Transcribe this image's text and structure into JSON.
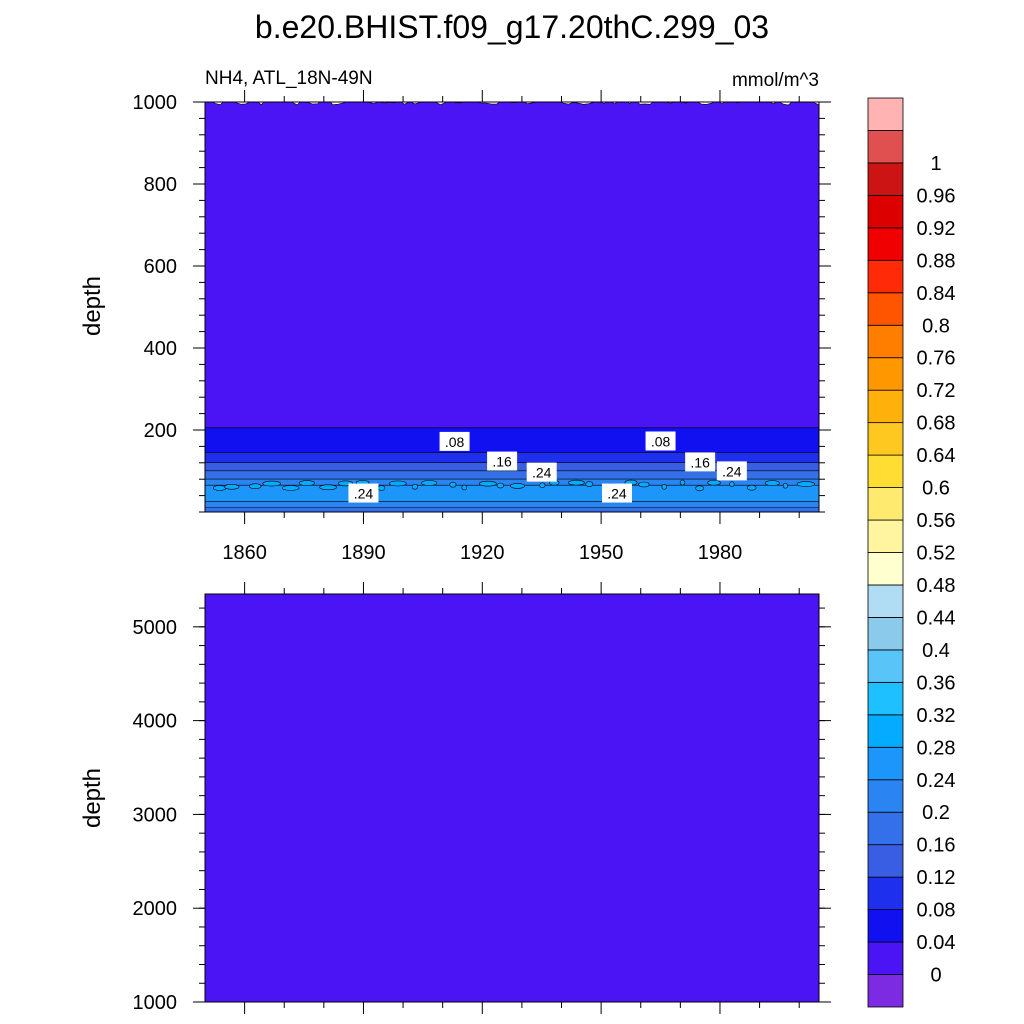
{
  "chart_data": [
    {
      "type": "heatmap",
      "title": "b.e20.BHIST.f09_g17.20thC.299_03",
      "subtitle_left": "NH4, ATL_18N-49N",
      "subtitle_right": "mmol/m^3",
      "ylabel": "depth",
      "xlim": [
        1850,
        2005
      ],
      "ylim": [
        1000,
        0
      ],
      "x_ticks": [
        1860,
        1890,
        1920,
        1950,
        1980
      ],
      "x_tick_labels": [
        "1860",
        "1890",
        "1920",
        "1950",
        "1980"
      ],
      "y_ticks": [
        200,
        400,
        600,
        800,
        1000
      ],
      "y_tick_labels": [
        "200",
        "400",
        "600",
        "800",
        "1000"
      ],
      "description_bands": [
        {
          "depth_top": 0,
          "depth_bottom": 25,
          "value": 0.18
        },
        {
          "depth_top": 25,
          "depth_bottom": 40,
          "value": 0.22
        },
        {
          "depth_top": 40,
          "depth_bottom": 80,
          "value": 0.26
        },
        {
          "depth_top": 80,
          "depth_bottom": 95,
          "value": 0.22
        },
        {
          "depth_top": 95,
          "depth_bottom": 115,
          "value": 0.18
        },
        {
          "depth_top": 115,
          "depth_bottom": 135,
          "value": 0.14
        },
        {
          "depth_top": 135,
          "depth_bottom": 160,
          "value": 0.1
        },
        {
          "depth_top": 160,
          "depth_bottom": 220,
          "value": 0.06
        },
        {
          "depth_top": 220,
          "depth_bottom": 1000,
          "value": 0.02
        }
      ],
      "contour_labels": [
        {
          "text": ".24",
          "x": 1890,
          "depth": 45
        },
        {
          "text": ".24",
          "x": 1954,
          "depth": 45
        },
        {
          "text": ".24",
          "x": 1935,
          "depth": 96
        },
        {
          "text": ".24",
          "x": 1983,
          "depth": 99
        },
        {
          "text": ".16",
          "x": 1925,
          "depth": 123
        },
        {
          "text": ".16",
          "x": 1975,
          "depth": 121
        },
        {
          "text": ".08",
          "x": 1913,
          "depth": 171
        },
        {
          "text": ".08",
          "x": 1965,
          "depth": 172
        }
      ]
    },
    {
      "type": "heatmap",
      "ylabel": "depth",
      "xlim": [
        1850,
        2005
      ],
      "ylim": [
        5350,
        1000
      ],
      "y_ticks": [
        1000,
        2000,
        3000,
        4000,
        5000
      ],
      "y_tick_labels": [
        "1000",
        "2000",
        "3000",
        "4000",
        "5000"
      ],
      "description_bands": [
        {
          "depth_top": 1000,
          "depth_bottom": 5350,
          "value": 0.02
        }
      ]
    }
  ],
  "colorbar": {
    "labels": [
      "0",
      "0.04",
      "0.08",
      "0.12",
      "0.16",
      "0.2",
      "0.24",
      "0.28",
      "0.32",
      "0.36",
      "0.4",
      "0.44",
      "0.48",
      "0.52",
      "0.56",
      "0.6",
      "0.64",
      "0.68",
      "0.72",
      "0.76",
      "0.8",
      "0.84",
      "0.88",
      "0.92",
      "0.96",
      "1"
    ],
    "colors": [
      "#7d2be3",
      "#4a14f4",
      "#1010f0",
      "#1e30ee",
      "#3a5ee3",
      "#3470ea",
      "#2a84f2",
      "#1c96fa",
      "#05abff",
      "#1ec0ff",
      "#58c4f8",
      "#8ccaec",
      "#b0ddf3",
      "#ffffcf",
      "#fff4a0",
      "#ffea70",
      "#ffdd32",
      "#ffc820",
      "#ffb00a",
      "#ff9700",
      "#ff7e00",
      "#ff5400",
      "#ff2a08",
      "#f00000",
      "#dc0000",
      "#cc1414",
      "#e05050",
      "#ffb3b3"
    ]
  }
}
